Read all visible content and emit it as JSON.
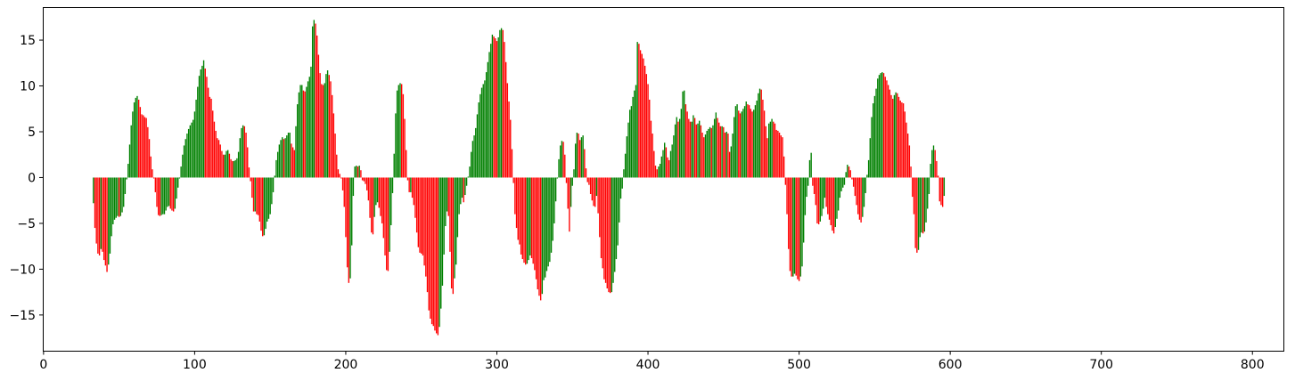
{
  "chart_data": {
    "type": "bar",
    "title": "",
    "xlabel": "",
    "ylabel": "",
    "xlim": [
      -0.5,
      820.5
    ],
    "ylim": [
      -18.9,
      18.6
    ],
    "x_ticks": [
      0,
      100,
      200,
      300,
      400,
      500,
      600,
      700,
      800
    ],
    "x_tick_labels": [
      "0",
      "100",
      "200",
      "300",
      "400",
      "500",
      "600",
      "700",
      "800"
    ],
    "y_ticks": [
      -15,
      -10,
      -5,
      0,
      5,
      10,
      15
    ],
    "y_tick_labels": [
      "−15",
      "−10",
      "−5",
      "0",
      "5",
      "10",
      "15"
    ],
    "grid": false,
    "legend": null,
    "colors": {
      "up": "#008000",
      "down": "#ff0000"
    },
    "x_start": 33,
    "x_step": 1,
    "values": [
      -2.8,
      -5.5,
      -7.2,
      -8.3,
      -8.5,
      -7.8,
      -8.1,
      -9.0,
      -9.6,
      -10.3,
      -9.5,
      -8.3,
      -6.4,
      -5.1,
      -4.6,
      -4.4,
      -4.2,
      -4.3,
      -4.2,
      -3.8,
      -3.2,
      -1.8,
      -0.2,
      1.5,
      3.6,
      5.7,
      7.2,
      8.2,
      8.7,
      8.9,
      8.5,
      7.7,
      6.9,
      6.8,
      6.6,
      6.5,
      5.5,
      4.2,
      2.3,
      0.9,
      -0.1,
      -1.6,
      -3.2,
      -4.1,
      -4.2,
      -4.1,
      -4.0,
      -4.0,
      -3.6,
      -3.2,
      -3.1,
      -3.4,
      -3.6,
      -3.7,
      -3.4,
      -2.3,
      -1.1,
      -0.1,
      1.2,
      2.5,
      3.5,
      4.2,
      4.8,
      5.3,
      5.7,
      6.0,
      6.3,
      7.2,
      8.5,
      9.9,
      11.1,
      11.8,
      12.2,
      12.8,
      11.9,
      11.0,
      9.8,
      8.8,
      8.6,
      7.3,
      6.1,
      5.1,
      4.3,
      4.1,
      3.6,
      2.9,
      2.5,
      2.5,
      2.9,
      3.0,
      2.6,
      2.0,
      1.8,
      1.8,
      1.9,
      2.1,
      2.8,
      4.3,
      5.4,
      5.7,
      5.6,
      4.9,
      3.3,
      1.1,
      -0.4,
      -2.2,
      -3.7,
      -3.7,
      -4.0,
      -4.1,
      -4.8,
      -5.8,
      -6.4,
      -6.3,
      -5.6,
      -4.8,
      -4.5,
      -4.0,
      -2.9,
      -1.6,
      0.2,
      1.9,
      2.8,
      3.6,
      4.1,
      4.4,
      4.2,
      4.3,
      4.6,
      4.9,
      4.9,
      3.7,
      3.3,
      3.0,
      5.6,
      8.0,
      9.3,
      10.1,
      10.1,
      9.5,
      9.4,
      9.9,
      10.5,
      11.0,
      12.1,
      16.5,
      17.2,
      16.8,
      15.5,
      13.4,
      11.4,
      10.2,
      10.1,
      10.3,
      11.3,
      11.7,
      11.2,
      10.5,
      9.0,
      7.0,
      4.8,
      2.5,
      0.9,
      0.4,
      -0.1,
      -1.4,
      -3.2,
      -6.5,
      -9.8,
      -11.5,
      -11.0,
      -7.4,
      -2.0,
      1.2,
      1.3,
      1.2,
      1.3,
      0.8,
      -0.3,
      -0.4,
      -0.7,
      -1.4,
      -2.5,
      -4.4,
      -6.0,
      -6.2,
      -4.3,
      -3.0,
      -2.7,
      -3.3,
      -4.2,
      -5.0,
      -6.6,
      -8.5,
      -10.1,
      -10.2,
      -8.1,
      -5.2,
      -1.7,
      2.6,
      7.0,
      9.5,
      10.1,
      10.3,
      10.2,
      9.1,
      6.4,
      3.0,
      -0.3,
      -1.6,
      -1.6,
      -2.2,
      -3.0,
      -4.4,
      -6.0,
      -7.6,
      -8.2,
      -8.3,
      -8.5,
      -9.6,
      -10.8,
      -12.5,
      -14.5,
      -15.4,
      -16.0,
      -16.2,
      -16.7,
      -17.0,
      -17.2,
      -16.3,
      -14.3,
      -11.8,
      -8.4,
      -5.3,
      -3.7,
      -4.2,
      -8.1,
      -12.1,
      -12.7,
      -11.0,
      -9.5,
      -6.5,
      -4.0,
      -2.9,
      -2.2,
      -2.7,
      -1.9,
      -0.9,
      0.1,
      1.2,
      2.8,
      4.0,
      4.6,
      5.4,
      6.9,
      8.2,
      9.1,
      9.8,
      10.2,
      10.6,
      11.5,
      12.6,
      13.7,
      14.6,
      15.6,
      15.4,
      15.2,
      14.9,
      15.3,
      16.1,
      16.3,
      16.1,
      14.8,
      12.6,
      10.3,
      8.3,
      6.3,
      3.1,
      -0.6,
      -4.0,
      -5.5,
      -6.8,
      -7.3,
      -8.4,
      -8.9,
      -9.3,
      -9.5,
      -9.4,
      -9.0,
      -8.5,
      -8.8,
      -9.4,
      -10.1,
      -11.1,
      -12.2,
      -12.9,
      -13.4,
      -12.7,
      -11.2,
      -10.9,
      -10.2,
      -9.7,
      -9.2,
      -8.2,
      -6.9,
      -5.0,
      -2.6,
      -0.1,
      2.0,
      3.5,
      4.0,
      3.9,
      2.5,
      -0.6,
      -3.4,
      -5.9,
      -3.2,
      -0.9,
      0.9,
      3.7,
      4.9,
      4.8,
      4.1,
      4.4,
      4.6,
      3.1,
      1.0,
      -0.5,
      -0.8,
      -1.8,
      -2.5,
      -3.1,
      -3.2,
      -2.0,
      -3.9,
      -6.5,
      -8.8,
      -9.9,
      -11.1,
      -11.5,
      -12.1,
      -12.5,
      -12.6,
      -12.5,
      -11.5,
      -10.3,
      -8.9,
      -7.4,
      -4.9,
      -2.3,
      -1.2,
      0.9,
      2.6,
      4.5,
      6.0,
      7.4,
      7.8,
      8.8,
      9.5,
      10.1,
      14.8,
      14.6,
      13.9,
      13.5,
      13.0,
      12.2,
      11.3,
      10.2,
      8.5,
      6.2,
      4.8,
      2.9,
      1.3,
      0.9,
      1.2,
      1.5,
      2.3,
      3.0,
      3.8,
      3.3,
      2.2,
      1.9,
      2.9,
      3.6,
      4.6,
      5.8,
      6.6,
      6.1,
      6.4,
      7.5,
      9.4,
      9.5,
      8.0,
      7.2,
      6.4,
      6.1,
      6.1,
      6.8,
      6.5,
      5.8,
      5.9,
      6.2,
      5.7,
      4.9,
      4.4,
      4.7,
      5.1,
      5.3,
      5.5,
      5.4,
      5.7,
      6.4,
      7.1,
      6.5,
      6.0,
      5.6,
      5.6,
      5.5,
      4.9,
      5.0,
      4.8,
      2.8,
      3.4,
      4.8,
      6.6,
      7.8,
      8.0,
      7.3,
      7.0,
      7.2,
      7.5,
      7.8,
      8.3,
      8.0,
      7.9,
      7.5,
      7.2,
      7.4,
      7.9,
      8.4,
      9.2,
      9.7,
      9.6,
      8.5,
      7.3,
      5.6,
      4.3,
      5.9,
      6.1,
      6.4,
      6.1,
      5.9,
      5.2,
      5.1,
      4.9,
      4.6,
      4.4,
      2.3,
      -0.8,
      -4.0,
      -7.8,
      -10.2,
      -10.8,
      -10.8,
      -10.5,
      -10.7,
      -11.1,
      -11.3,
      -10.8,
      -9.7,
      -7.1,
      -4.1,
      -2.1,
      -0.9,
      1.9,
      2.7,
      -0.9,
      -1.8,
      -3.0,
      -5.0,
      -5.1,
      -4.8,
      -4.2,
      -3.4,
      -2.2,
      -3.2,
      -4.0,
      -4.6,
      -5.2,
      -5.8,
      -6.1,
      -5.4,
      -4.5,
      -3.6,
      -2.2,
      -1.5,
      -1.1,
      -0.8,
      0.6,
      1.4,
      1.2,
      0.8,
      -0.2,
      -1.0,
      -2.0,
      -3.0,
      -4.0,
      -4.6,
      -4.9,
      -4.3,
      -3.2,
      -1.7,
      0.3,
      1.9,
      4.3,
      6.6,
      8.1,
      8.9,
      9.7,
      10.8,
      11.2,
      11.4,
      11.5,
      11.4,
      11.0,
      10.6,
      10.1,
      9.6,
      9.0,
      8.6,
      9.0,
      9.3,
      9.2,
      8.8,
      8.4,
      8.2,
      8.1,
      7.2,
      6.0,
      4.8,
      3.5,
      1.2,
      -2.1,
      -4.0,
      -7.7,
      -8.2,
      -7.9,
      -6.5,
      -6.0,
      -6.1,
      -5.9,
      -4.9,
      -3.4,
      -1.8,
      1.5,
      3.0,
      3.5,
      3.0,
      1.8,
      0.2,
      -2.6,
      -3.0,
      -3.2,
      -2.0
    ]
  }
}
